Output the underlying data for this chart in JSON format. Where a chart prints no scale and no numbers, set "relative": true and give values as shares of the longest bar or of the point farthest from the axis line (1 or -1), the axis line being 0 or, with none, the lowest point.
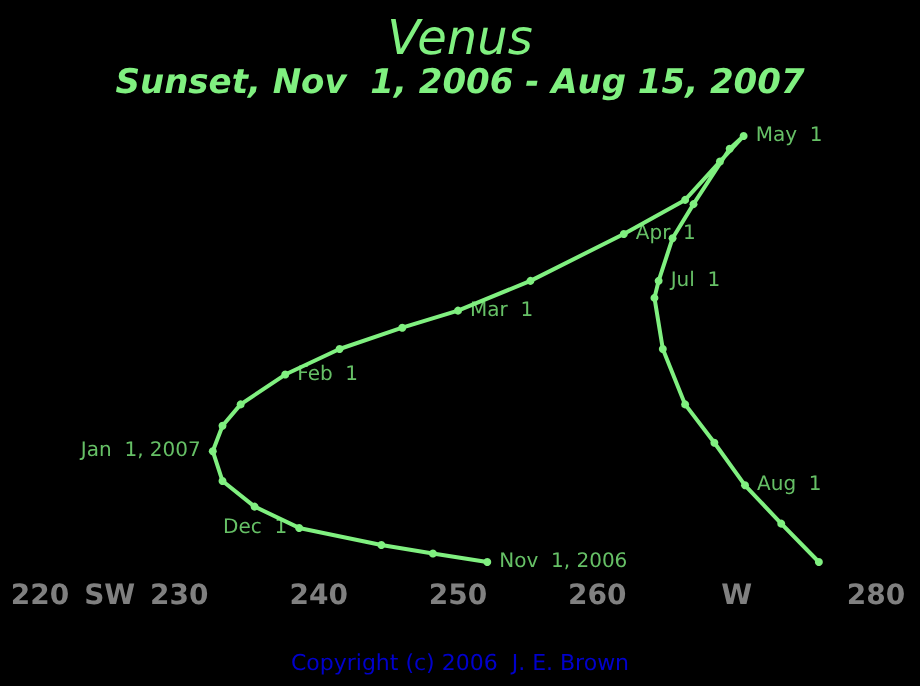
{
  "chart_data": {
    "type": "line",
    "title": "Venus",
    "subtitle": "Sunset, Nov  1, 2006 - Aug 15, 2007",
    "relative": true,
    "marker": "circle",
    "line_style": "solid",
    "grid": false,
    "tick_labels": "x",
    "xlim": [
      220,
      280
    ],
    "xticks": [
      220,
      {
        "value": 225,
        "label": "SW"
      },
      230,
      240,
      250,
      260,
      {
        "value": 270,
        "label": "W"
      },
      280
    ],
    "series": [
      {
        "color": "#80f080",
        "x": [
          252.1,
          248.2,
          244.5,
          238.6,
          235.4,
          233.1,
          232.4,
          233.1,
          234.4,
          237.6,
          241.5,
          246.0,
          250,
          255.2,
          261.9,
          266.3,
          268.8,
          270.5,
          269.5,
          266.9,
          265.4,
          264.4,
          264.1,
          264.7,
          266.3,
          268.4,
          270.6,
          273.2,
          275.9
        ],
        "values": [
          0,
          0.02,
          0.04,
          0.08,
          0.13,
          0.19,
          0.26,
          0.32,
          0.37,
          0.44,
          0.5,
          0.55,
          0.59,
          0.66,
          0.77,
          0.85,
          0.94,
          1.0,
          0.97,
          0.84,
          0.76,
          0.66,
          0.62,
          0.5,
          0.37,
          0.28,
          0.18,
          0.09,
          0
        ]
      }
    ],
    "annotations": [
      {
        "text": "Nov  1, 2006",
        "x": 252.1,
        "y": 0
      },
      {
        "text": "Dec  1",
        "x": 238.6,
        "y": 0.08
      },
      {
        "text": "Jan  1, 2007",
        "x": 232.4,
        "y": 0.26
      },
      {
        "text": "Feb  1",
        "x": 237.6,
        "y": 0.44
      },
      {
        "text": "Mar  1",
        "x": 250,
        "y": 0.59
      },
      {
        "text": "Apr  1",
        "x": 261.9,
        "y": 0.77
      },
      {
        "text": "May  1",
        "x": 270.5,
        "y": 1.0
      },
      {
        "text": "Jul  1",
        "x": 264.4,
        "y": 0.66
      },
      {
        "text": "Aug  1",
        "x": 270.6,
        "y": 0.18
      },
      "Copyright (c) 2006  J. E. Brown"
    ]
  }
}
